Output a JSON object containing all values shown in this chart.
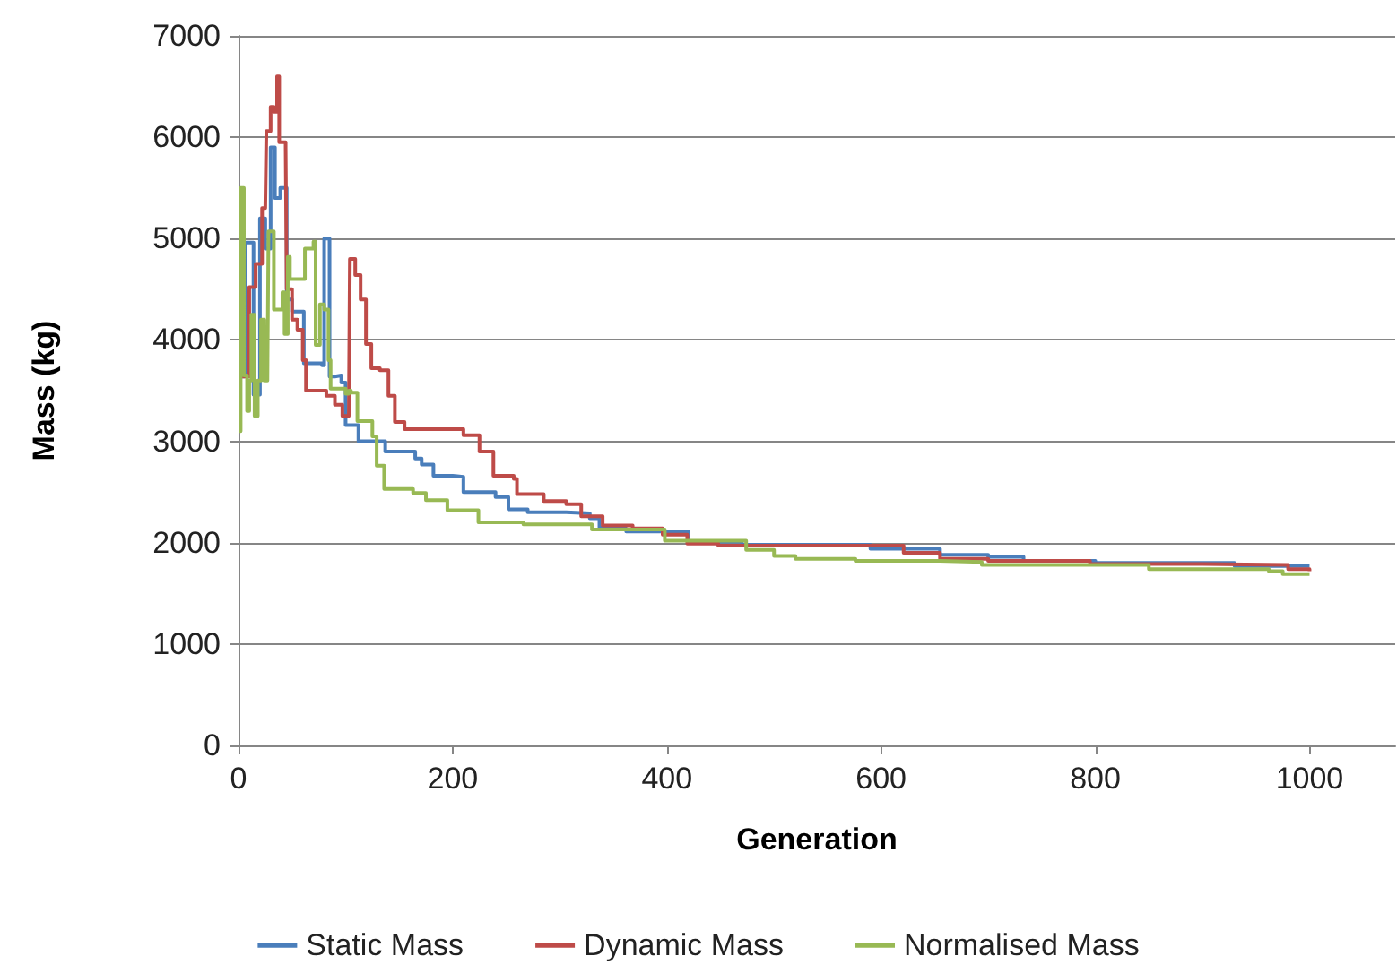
{
  "chart_data": {
    "type": "step",
    "xlabel": "Generation",
    "ylabel": "Mass (kg)",
    "xlim": [
      0,
      1080
    ],
    "xticks": [
      0,
      200,
      400,
      600,
      800,
      1000
    ],
    "ylim": [
      0,
      7000
    ],
    "yticks": [
      0,
      1000,
      2000,
      3000,
      4000,
      5000,
      6000,
      7000
    ],
    "grid": "y",
    "legend": "bottom",
    "marker": "none",
    "line_style": "solid",
    "series": [
      {
        "name": "Static Mass",
        "color": "#4a7ebb",
        "x": [
          0,
          2,
          6,
          10,
          14,
          20,
          25,
          30,
          34,
          37,
          39,
          43,
          45,
          50,
          58,
          61,
          72,
          78,
          80,
          83,
          85,
          90,
          96,
          100,
          106,
          112,
          131,
          137,
          165,
          171,
          182,
          200,
          210,
          225,
          240,
          252,
          270,
          306,
          328,
          337,
          356,
          362,
          420,
          470,
          581,
          590,
          643,
          655,
          683,
          700,
          733,
          780,
          800,
          920,
          930,
          1000
        ],
        "values": [
          5400,
          3640,
          4960,
          4960,
          3460,
          5200,
          4900,
          5900,
          5400,
          5400,
          5500,
          5500,
          4400,
          4280,
          4280,
          3770,
          3770,
          3750,
          5000,
          5000,
          3640,
          3650,
          3580,
          3160,
          3160,
          3000,
          3000,
          2900,
          2830,
          2770,
          2660,
          2650,
          2500,
          2500,
          2450,
          2330,
          2300,
          2290,
          2240,
          2150,
          2140,
          2110,
          2010,
          1980,
          1980,
          1940,
          1940,
          1880,
          1880,
          1860,
          1820,
          1820,
          1800,
          1800,
          1770,
          1770
        ]
      },
      {
        "name": "Dynamic Mass",
        "color": "#be4b48",
        "x": [
          0,
          2,
          10,
          16,
          22,
          25,
          26,
          30,
          33,
          36,
          38,
          44,
          45,
          50,
          55,
          60,
          63,
          82,
          90,
          97,
          103,
          104,
          109,
          114,
          119,
          124,
          132,
          140,
          146,
          155,
          210,
          225,
          238,
          257,
          260,
          285,
          306,
          320,
          340,
          368,
          396,
          419,
          448,
          588,
          621,
          655,
          700,
          795,
          900,
          980,
          1000
        ],
        "values": [
          3900,
          3640,
          4520,
          4750,
          5300,
          5300,
          6060,
          6300,
          6250,
          6600,
          5950,
          5900,
          4500,
          4200,
          4100,
          3800,
          3500,
          3450,
          3360,
          3250,
          3250,
          4800,
          4640,
          4400,
          3960,
          3720,
          3700,
          3450,
          3190,
          3120,
          3060,
          2900,
          2660,
          2630,
          2480,
          2410,
          2380,
          2260,
          2170,
          2140,
          2080,
          1990,
          1970,
          1970,
          1900,
          1840,
          1820,
          1790,
          1780,
          1740,
          1720
        ]
      },
      {
        "name": "Normalised Mass",
        "color": "#98b954",
        "x": [
          0,
          2,
          5,
          8,
          10,
          12,
          15,
          18,
          21,
          24,
          27,
          28,
          33,
          41,
          43,
          46,
          48,
          60,
          62,
          70,
          72,
          76,
          80,
          84,
          86,
          100,
          103,
          105,
          111,
          125,
          129,
          136,
          163,
          175,
          195,
          224,
          266,
          330,
          398,
          474,
          500,
          520,
          576,
          655,
          694,
          850,
          962,
          975,
          1000
        ],
        "values": [
          3100,
          5500,
          3650,
          3300,
          3600,
          4250,
          3250,
          3600,
          4200,
          3600,
          3600,
          5070,
          4300,
          4470,
          4060,
          4820,
          4600,
          4600,
          4900,
          4970,
          3950,
          4350,
          4300,
          3800,
          3520,
          3470,
          3500,
          3480,
          3200,
          3050,
          2760,
          2530,
          2490,
          2420,
          2320,
          2200,
          2180,
          2130,
          2020,
          1930,
          1870,
          1840,
          1820,
          1810,
          1780,
          1740,
          1720,
          1690,
          1690
        ]
      }
    ]
  }
}
